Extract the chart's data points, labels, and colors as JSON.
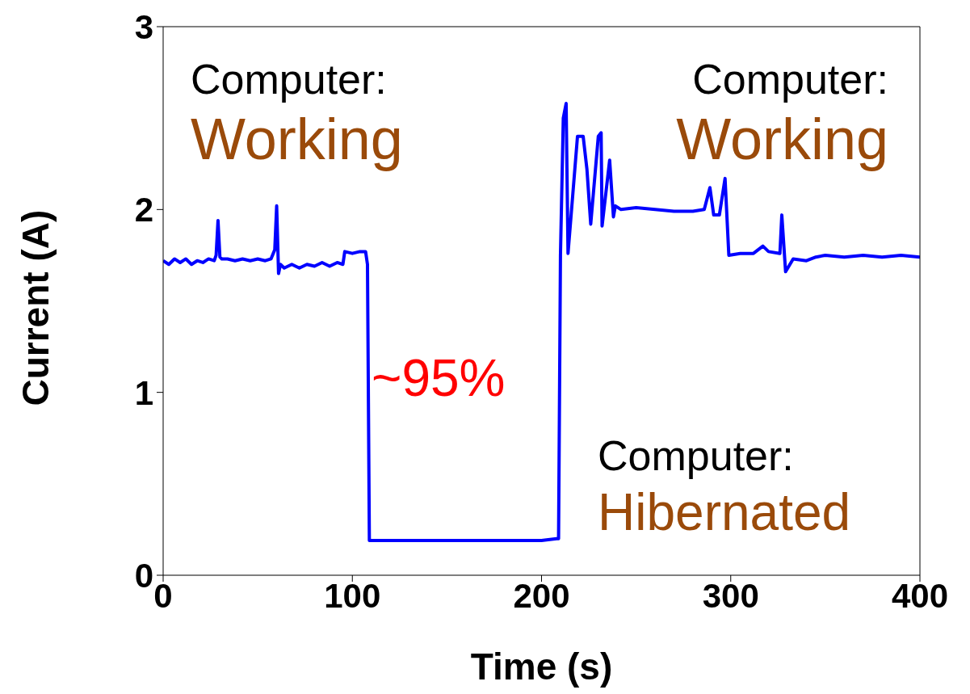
{
  "chart_data": {
    "type": "line",
    "xlabel": "Time (s)",
    "ylabel": "Current (A)",
    "x": [
      0,
      3,
      6,
      9,
      12,
      15,
      18,
      21,
      24,
      27,
      28,
      29,
      30,
      31,
      34,
      38,
      42,
      46,
      50,
      54,
      57,
      59,
      60,
      61,
      62,
      64,
      68,
      72,
      76,
      80,
      84,
      88,
      92,
      95,
      96,
      100,
      104,
      107,
      108,
      109,
      110,
      120,
      140,
      160,
      180,
      200,
      208,
      209,
      210,
      211.5,
      213,
      214,
      219,
      222,
      224,
      226,
      230,
      231.5,
      232,
      236,
      238,
      239,
      242,
      250,
      260,
      270,
      280,
      286,
      289,
      291,
      294,
      297,
      299,
      305,
      312,
      317,
      320,
      326,
      327,
      329,
      333,
      340,
      345,
      350,
      360,
      370,
      380,
      390,
      400
    ],
    "series": [
      {
        "color": "#0000ff",
        "values": [
          1.72,
          1.7,
          1.73,
          1.71,
          1.73,
          1.7,
          1.72,
          1.71,
          1.73,
          1.72,
          1.75,
          1.94,
          1.74,
          1.73,
          1.73,
          1.72,
          1.73,
          1.72,
          1.73,
          1.72,
          1.73,
          1.78,
          2.02,
          1.65,
          1.7,
          1.68,
          1.7,
          1.68,
          1.7,
          1.69,
          1.71,
          1.69,
          1.71,
          1.7,
          1.77,
          1.76,
          1.77,
          1.77,
          1.7,
          0.19,
          0.19,
          0.19,
          0.19,
          0.19,
          0.19,
          0.19,
          0.2,
          0.2,
          1.75,
          2.5,
          2.58,
          1.76,
          2.4,
          2.4,
          2.22,
          1.92,
          2.4,
          2.42,
          1.91,
          2.27,
          1.96,
          2.02,
          2.0,
          2.01,
          2.0,
          1.99,
          1.99,
          2.0,
          2.12,
          1.97,
          1.97,
          2.17,
          1.75,
          1.76,
          1.76,
          1.8,
          1.77,
          1.76,
          1.97,
          1.66,
          1.73,
          1.72,
          1.74,
          1.75,
          1.74,
          1.75,
          1.74,
          1.75,
          1.74
        ]
      }
    ],
    "xlim": [
      0,
      400
    ],
    "ylim": [
      0,
      3
    ],
    "xticks": [
      0,
      100,
      200,
      300,
      400
    ],
    "yticks": [
      0,
      1,
      2,
      3
    ],
    "marker": "none",
    "line_style": "solid",
    "annotations": [
      "Computer:",
      "Working",
      "Computer:",
      "Working",
      "~95%",
      "Computer:",
      "Hibernated"
    ]
  }
}
